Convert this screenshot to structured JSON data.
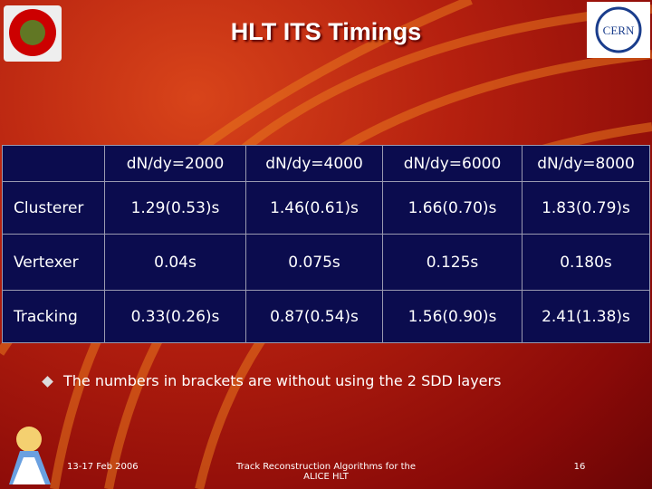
{
  "header": {
    "title": "HLT ITS Timings"
  },
  "table": {
    "columns": [
      "dN/dy=2000",
      "dN/dy=4000",
      "dN/dy=6000",
      "dN/dy=8000"
    ],
    "rows": [
      {
        "label": "Clusterer",
        "cells": [
          "1.29(0.53)s",
          "1.46(0.61)s",
          "1.66(0.70)s",
          "1.83(0.79)s"
        ]
      },
      {
        "label": "Vertexer",
        "cells": [
          "0.04s",
          "0.075s",
          "0.125s",
          "0.180s"
        ]
      },
      {
        "label": "Tracking",
        "cells": [
          "0.33(0.26)s",
          "0.87(0.54)s",
          "1.56(0.90)s",
          "2.41(1.38)s"
        ]
      }
    ]
  },
  "note": "The numbers in brackets are without using the 2 SDD layers",
  "footer": {
    "date": "13-17 Feb 2006",
    "center": "Track Reconstruction Algorithms for the ALICE HLT",
    "page": "16"
  }
}
